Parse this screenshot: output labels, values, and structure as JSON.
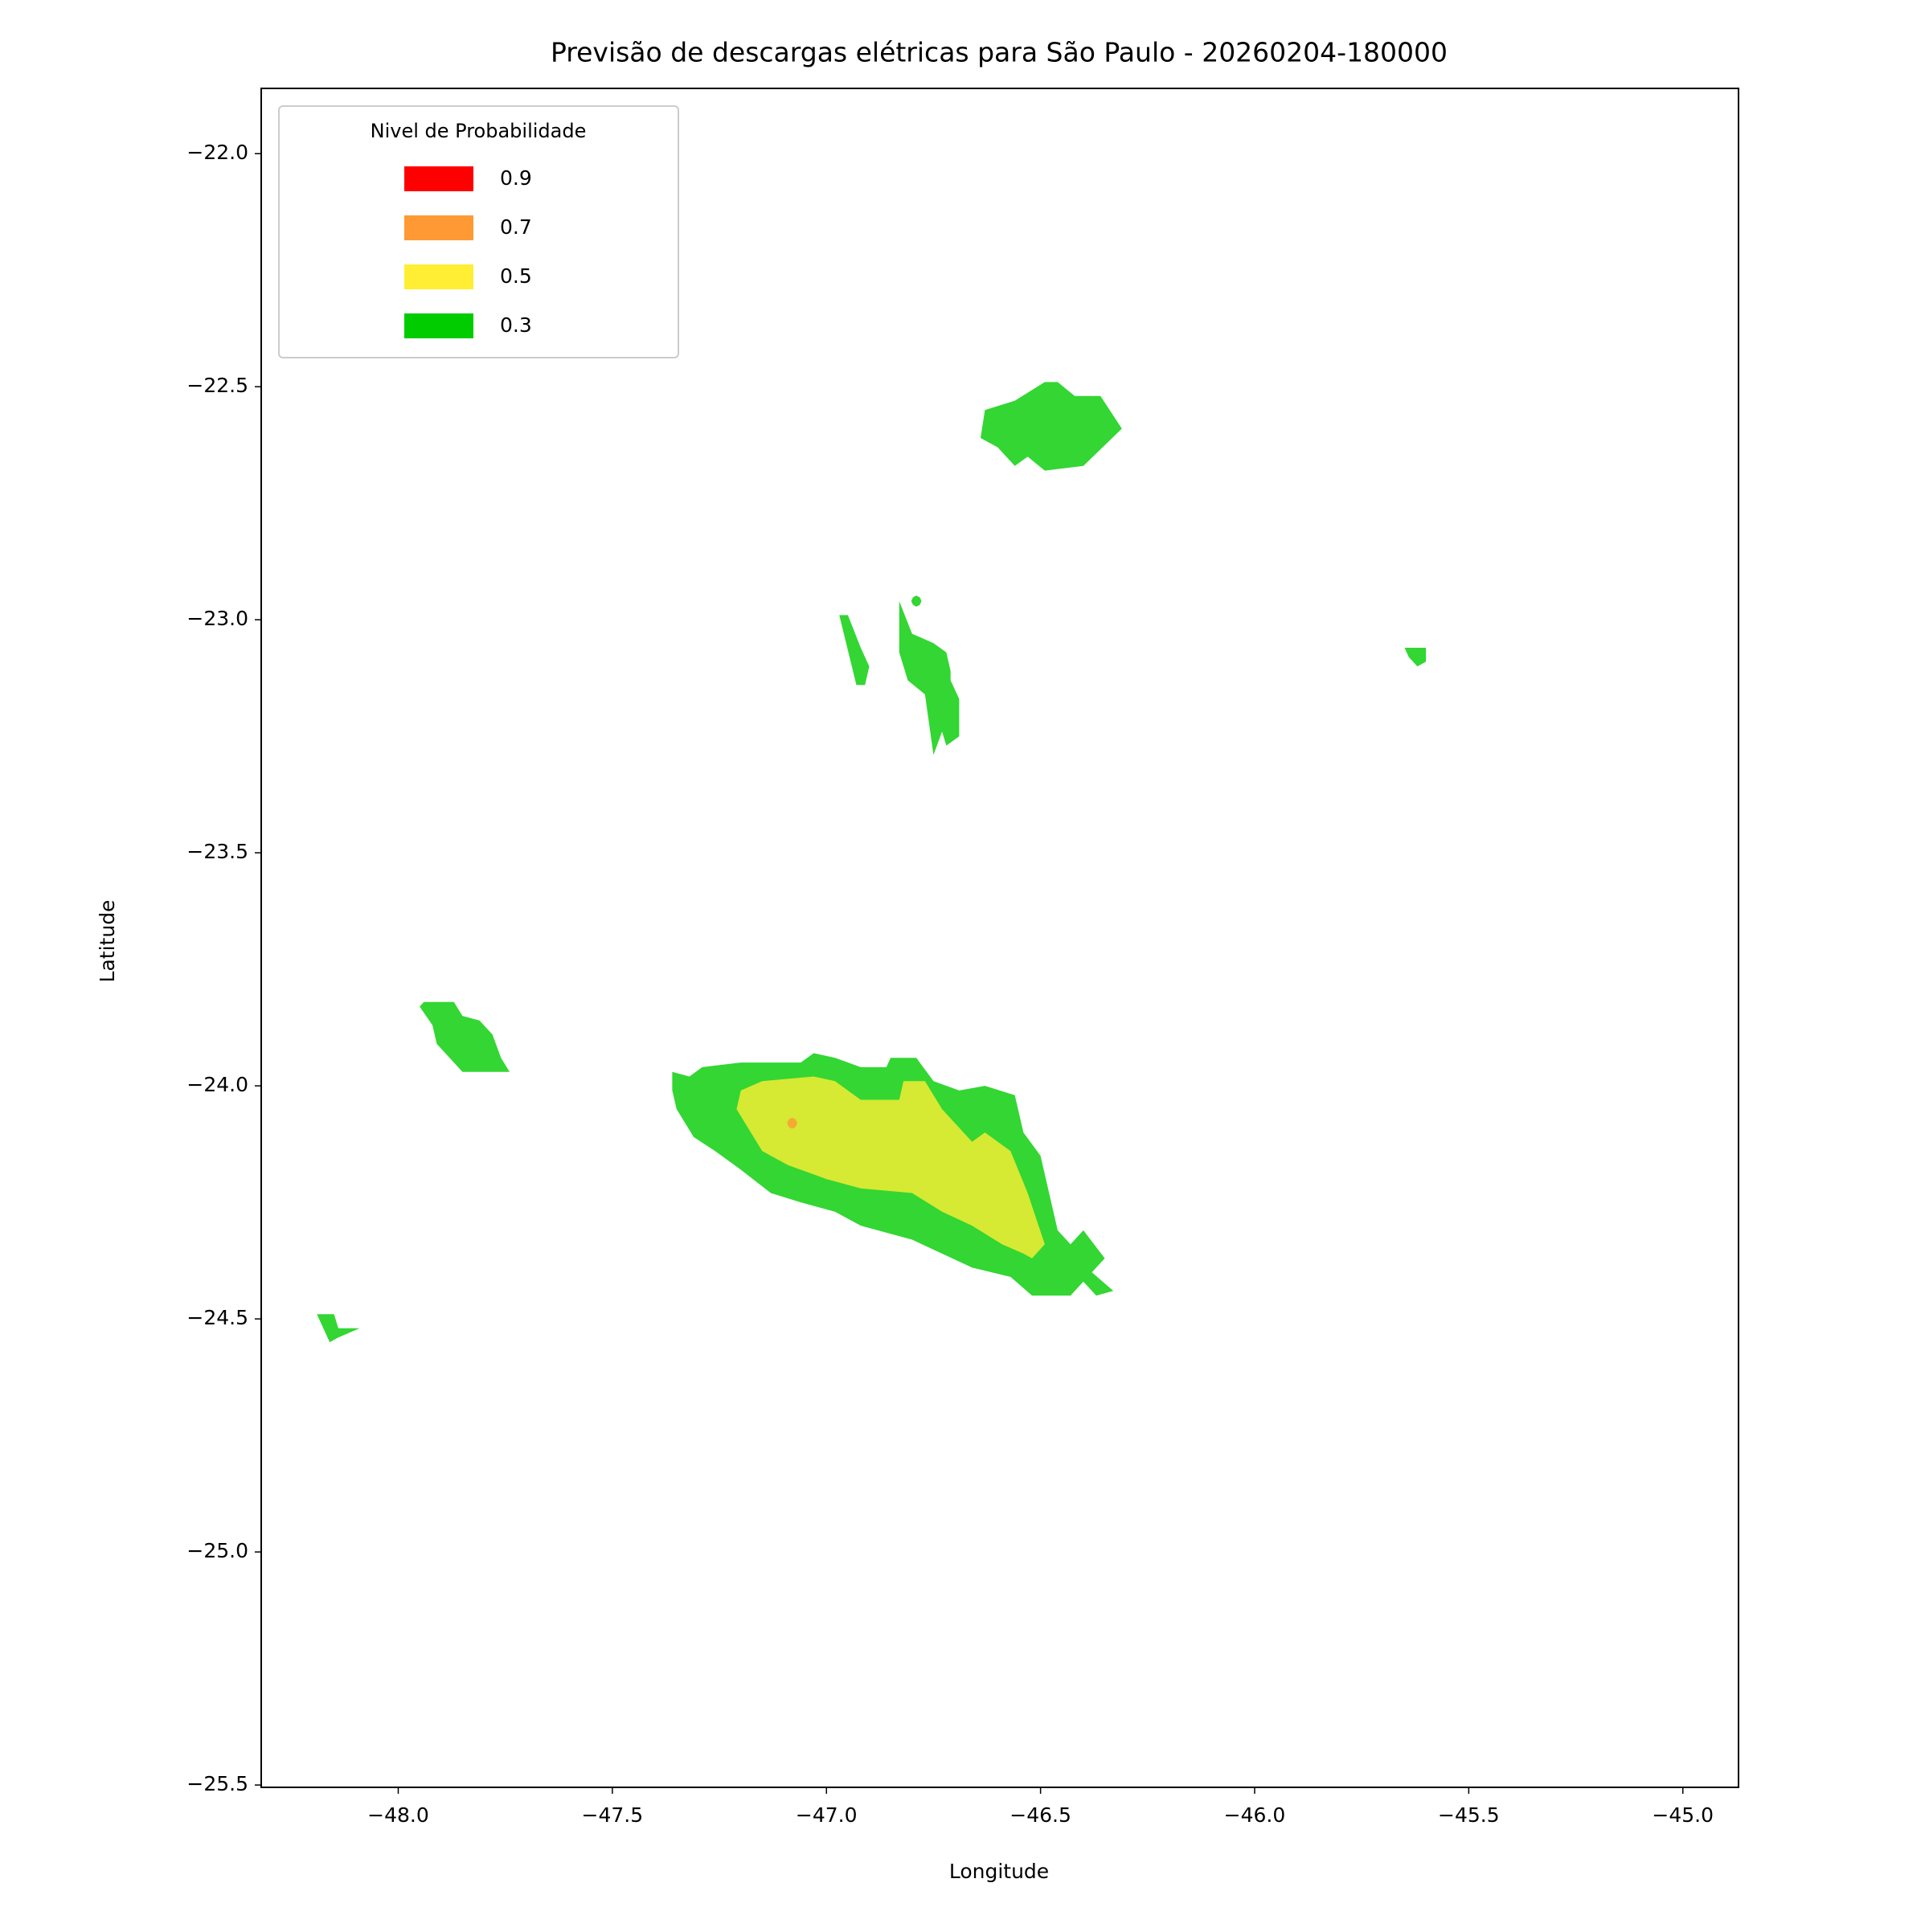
{
  "chart_data": {
    "type": "contour",
    "title": "Previsão de descargas elétricas para São Paulo - 20260204-180000",
    "xlabel": "Longitude",
    "ylabel": "Latitude",
    "legend_title": "Nivel de Probabilidade",
    "legend_loc": "upper left",
    "alpha": 0.8,
    "xlim": [
      -48.32,
      -44.87
    ],
    "ylim": [
      -25.505,
      -21.86
    ],
    "xticks": [
      {
        "value": -48,
        "label": "−48.0"
      },
      {
        "value": -47.5,
        "label": "−47.5"
      },
      {
        "value": -47,
        "label": "−47.0"
      },
      {
        "value": -46.5,
        "label": "−46.5"
      },
      {
        "value": -46,
        "label": "−46.0"
      },
      {
        "value": -45.5,
        "label": "−45.5"
      },
      {
        "value": -45,
        "label": "−45.0"
      }
    ],
    "yticks": [
      {
        "value": -22,
        "label": "−22.0"
      },
      {
        "value": -22.5,
        "label": "−22.5"
      },
      {
        "value": -23,
        "label": "−23.0"
      },
      {
        "value": -23.5,
        "label": "−23.5"
      },
      {
        "value": -24,
        "label": "−24.0"
      },
      {
        "value": -24.5,
        "label": "−24.5"
      },
      {
        "value": -25,
        "label": "−25.0"
      },
      {
        "value": -25.5,
        "label": "−25.5"
      }
    ],
    "series": [
      {
        "name": "0.9",
        "color": "#ff0000",
        "polygons": []
      },
      {
        "name": "0.7",
        "color": "#ff9933",
        "polygons": [
          {
            "x": [
              -47.068,
              -47.072,
              -47.08,
              -47.088,
              -47.092,
              -47.088,
              -47.08,
              -47.072
            ],
            "y": [
              -24.08,
              -24.072,
              -24.068,
              -24.072,
              -24.08,
              -24.088,
              -24.092,
              -24.088
            ]
          }
        ]
      },
      {
        "name": "0.5",
        "color": "#ffee33",
        "polygons": [
          {
            "x": [
              -47.2,
              -47.15,
              -47.03,
              -46.98,
              -46.92,
              -46.83,
              -46.82,
              -46.77,
              -46.73,
              -46.69,
              -46.66,
              -46.63,
              -46.57,
              -46.53,
              -46.49,
              -46.52,
              -46.54,
              -46.59,
              -46.66,
              -46.73,
              -46.8,
              -46.92,
              -47.0,
              -47.09,
              -47.15,
              -47.19,
              -47.21
            ],
            "y": [
              -24.01,
              -23.99,
              -23.98,
              -23.99,
              -24.03,
              -24.03,
              -23.99,
              -23.99,
              -24.05,
              -24.09,
              -24.12,
              -24.1,
              -24.14,
              -24.23,
              -24.34,
              -24.37,
              -24.36,
              -24.34,
              -24.3,
              -24.27,
              -24.23,
              -24.22,
              -24.2,
              -24.17,
              -24.14,
              -24.08,
              -24.05
            ]
          }
        ]
      },
      {
        "name": "0.3",
        "color": "#00cc00",
        "polygons": [
          {
            "x": [
              -46.63,
              -46.56,
              -46.49,
              -46.46,
              -46.42,
              -46.36,
              -46.31,
              -46.4,
              -46.49,
              -46.53,
              -46.56,
              -46.6,
              -46.64
            ],
            "y": [
              -22.55,
              -22.53,
              -22.49,
              -22.49,
              -22.52,
              -22.52,
              -22.59,
              -22.67,
              -22.68,
              -22.65,
              -22.67,
              -22.63,
              -22.61
            ]
          },
          {
            "x": [
              -46.83,
              -46.8,
              -46.75,
              -46.72,
              -46.71,
              -46.71,
              -46.69,
              -46.69,
              -46.72,
              -46.73,
              -46.75,
              -46.77,
              -46.81,
              -46.83
            ],
            "y": [
              -22.96,
              -23.03,
              -23.05,
              -23.07,
              -23.11,
              -23.13,
              -23.17,
              -23.25,
              -23.27,
              -23.24,
              -23.29,
              -23.16,
              -23.13,
              -23.07
            ]
          },
          {
            "x": [
              -46.778,
              -46.782,
              -46.79,
              -46.798,
              -46.802,
              -46.798,
              -46.79,
              -46.782
            ],
            "y": [
              -22.96,
              -22.952,
              -22.948,
              -22.952,
              -22.96,
              -22.968,
              -22.972,
              -22.968
            ]
          },
          {
            "x": [
              -46.97,
              -46.95,
              -46.92,
              -46.9,
              -46.91,
              -46.93
            ],
            "y": [
              -22.99,
              -22.99,
              -23.06,
              -23.1,
              -23.14,
              -23.14
            ]
          },
          {
            "x": [
              -45.65,
              -45.6,
              -45.6,
              -45.62,
              -45.64
            ],
            "y": [
              -23.06,
              -23.06,
              -23.09,
              -23.1,
              -23.08
            ]
          },
          {
            "x": [
              -47.95,
              -47.94,
              -47.87,
              -47.85,
              -47.81,
              -47.78,
              -47.76,
              -47.74,
              -47.85,
              -47.89,
              -47.91,
              -47.92
            ],
            "y": [
              -23.83,
              -23.82,
              -23.82,
              -23.85,
              -23.86,
              -23.89,
              -23.94,
              -23.97,
              -23.97,
              -23.93,
              -23.91,
              -23.87
            ]
          },
          {
            "x": [
              -48.19,
              -48.15,
              -48.14,
              -48.09,
              -48.14,
              -48.16
            ],
            "y": [
              -24.49,
              -24.49,
              -24.52,
              -24.52,
              -24.54,
              -24.55
            ]
          },
          {
            "x": [
              -47.36,
              -47.32,
              -47.29,
              -47.2,
              -47.06,
              -47.03,
              -46.98,
              -46.92,
              -46.86,
              -46.85,
              -46.79,
              -46.75,
              -46.69,
              -46.63,
              -46.56,
              -46.54,
              -46.5,
              -46.46,
              -46.43,
              -46.4,
              -46.35,
              -46.38,
              -46.33,
              -46.37,
              -46.4,
              -46.43,
              -46.52,
              -46.57,
              -46.66,
              -46.73,
              -46.8,
              -46.92,
              -46.98,
              -47.06,
              -47.13,
              -47.2,
              -47.26,
              -47.31,
              -47.35,
              -47.36
            ],
            "y": [
              -23.97,
              -23.98,
              -23.96,
              -23.95,
              -23.95,
              -23.93,
              -23.94,
              -23.96,
              -23.96,
              -23.94,
              -23.94,
              -23.99,
              -24.01,
              -24.0,
              -24.02,
              -24.1,
              -24.15,
              -24.31,
              -24.34,
              -24.31,
              -24.37,
              -24.4,
              -24.44,
              -24.45,
              -24.42,
              -24.45,
              -24.45,
              -24.41,
              -24.39,
              -24.36,
              -24.33,
              -24.3,
              -24.27,
              -24.25,
              -24.23,
              -24.18,
              -24.14,
              -24.11,
              -24.05,
              -24.01
            ]
          }
        ]
      }
    ]
  }
}
